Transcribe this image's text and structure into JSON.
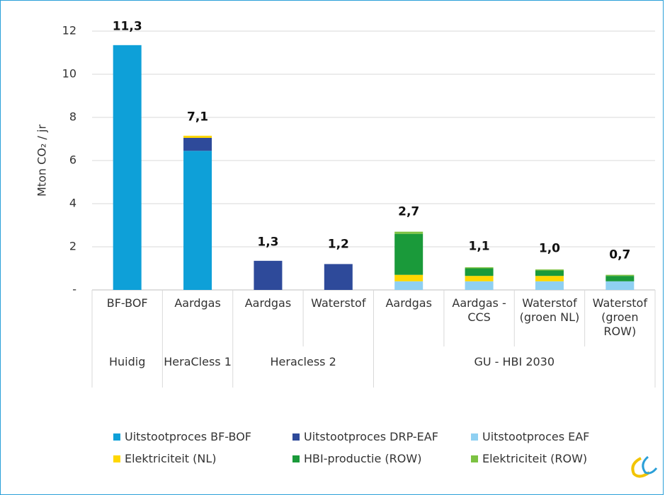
{
  "chart_data": {
    "type": "stacked-bar",
    "y_label": "Mton CO₂ / jr",
    "categories": [
      "BF-BOF",
      "Aardgas",
      "Aardgas",
      "Waterstof",
      "Aardgas",
      "Aardgas - CCS",
      "Waterstof (groen NL)",
      "Waterstof (groen ROW)"
    ],
    "groups": [
      "Huidig",
      "HeraCless 1",
      "Heracless 2",
      null,
      "GU - HBI 2030",
      null,
      null,
      null
    ],
    "series": [
      {
        "name": "Uitstootproces BF-BOF",
        "color": "#0ea0d8",
        "values": [
          11.35,
          6.45,
          0,
          0,
          0,
          0,
          0,
          0
        ]
      },
      {
        "name": "Uitstootproces DRP-EAF",
        "color": "#2e4a9a",
        "values": [
          0,
          0.6,
          1.35,
          1.2,
          0,
          0,
          0,
          0
        ]
      },
      {
        "name": "Uitstootproces EAF",
        "color": "#8fd0f2",
        "values": [
          0,
          0,
          0,
          0,
          0.4,
          0.4,
          0.4,
          0.4
        ]
      },
      {
        "name": "Elektriciteit (NL)",
        "color": "#ffd700",
        "values": [
          0,
          0.1,
          0,
          0,
          0.3,
          0.25,
          0.25,
          0
        ]
      },
      {
        "name": "HBI-productie (ROW)",
        "color": "#1a9a3a",
        "values": [
          0,
          0,
          0,
          0,
          1.9,
          0.35,
          0.25,
          0.25
        ]
      },
      {
        "name": "Elektriciteit (ROW)",
        "color": "#7cc242",
        "values": [
          0,
          0,
          0,
          0,
          0.1,
          0.05,
          0.05,
          0.05
        ]
      }
    ],
    "totals": {
      "values": [
        11.3,
        7.1,
        1.3,
        1.2,
        2.7,
        1.1,
        1.0,
        0.7
      ],
      "value_labels": [
        "11,3",
        "7,1",
        "1,3",
        "1,2",
        "2,7",
        "1,1",
        "1,0",
        "0,7"
      ]
    },
    "ylim": [
      0,
      12
    ],
    "yticks": [
      {
        "value": 0,
        "label": "-"
      },
      2,
      4,
      6,
      8,
      10,
      12
    ],
    "grid": true
  }
}
